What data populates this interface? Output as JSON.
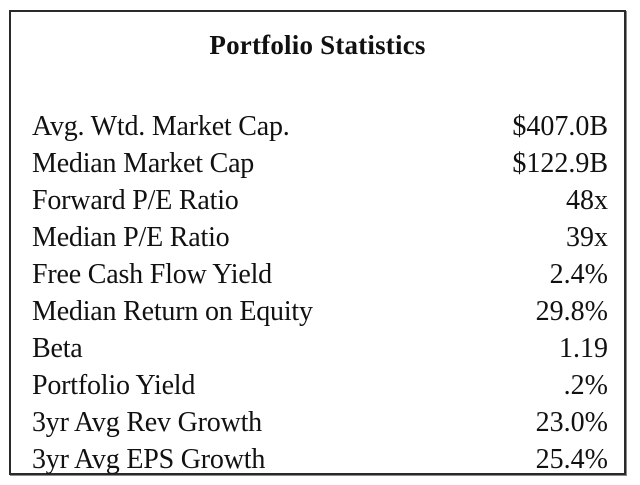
{
  "title": "Portfolio Statistics",
  "rows": [
    {
      "label": "Avg. Wtd. Market Cap.",
      "value": "$407.0B"
    },
    {
      "label": "Median Market Cap",
      "value": "$122.9B"
    },
    {
      "label": "Forward P/E Ratio",
      "value": "48x"
    },
    {
      "label": "Median P/E Ratio",
      "value": "39x"
    },
    {
      "label": "Free Cash Flow Yield",
      "value": "2.4%"
    },
    {
      "label": "Median Return on Equity",
      "value": "29.8%"
    },
    {
      "label": "Beta",
      "value": "1.19"
    },
    {
      "label": "Portfolio Yield",
      "value": ".2%"
    },
    {
      "label": "3yr Avg Rev Growth",
      "value": "23.0%"
    },
    {
      "label": "3yr Avg EPS Growth",
      "value": "25.4%"
    }
  ]
}
